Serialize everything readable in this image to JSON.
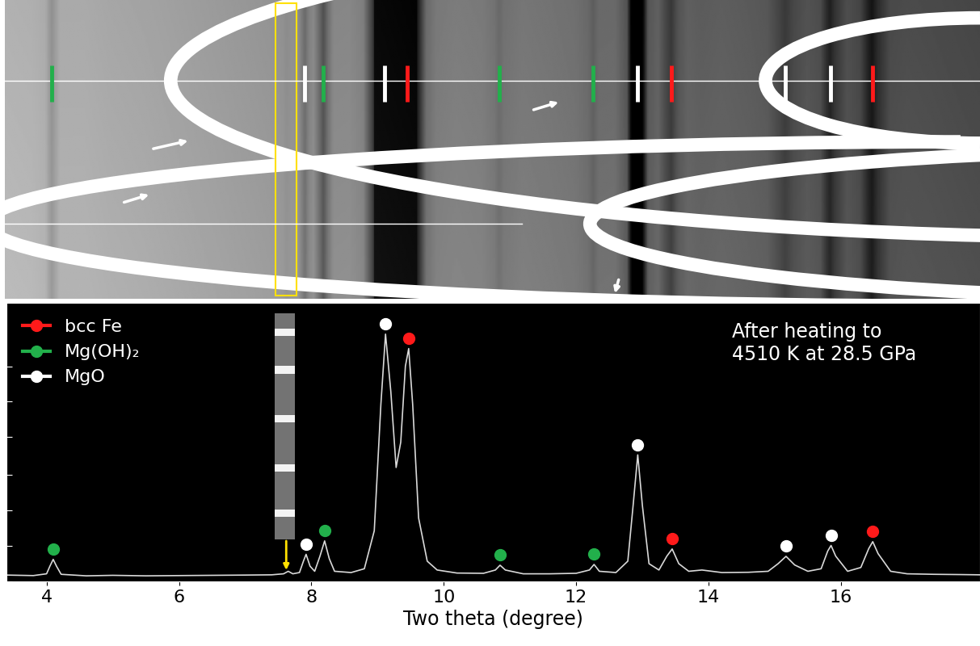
{
  "chart_data": {
    "type": "line",
    "xlabel": "Two theta (degree)",
    "annotation": "After heating to\n4510 K at 28.5 GPa",
    "xlim": [
      3.4,
      18.1
    ],
    "ylim": [
      0,
      110
    ],
    "xticks": [
      4,
      6,
      8,
      10,
      12,
      14,
      16
    ],
    "yticks": [
      0,
      14,
      28,
      42,
      57,
      71,
      85
    ],
    "tick_labels": "x",
    "legend": "upper left",
    "color": "#d9d9d9",
    "x": [
      3.4,
      3.8,
      4.0,
      4.05,
      4.1,
      4.15,
      4.22,
      4.6,
      5.0,
      5.5,
      6.0,
      6.5,
      7.0,
      7.4,
      7.58,
      7.65,
      7.72,
      7.82,
      7.88,
      7.92,
      7.98,
      8.05,
      8.13,
      8.2,
      8.27,
      8.35,
      8.6,
      8.8,
      8.95,
      9.05,
      9.12,
      9.2,
      9.28,
      9.35,
      9.42,
      9.47,
      9.53,
      9.62,
      9.75,
      9.9,
      10.2,
      10.6,
      10.78,
      10.85,
      10.93,
      11.2,
      11.6,
      12.0,
      12.2,
      12.27,
      12.35,
      12.6,
      12.78,
      12.86,
      12.93,
      13.0,
      13.1,
      13.25,
      13.37,
      13.45,
      13.55,
      13.7,
      13.9,
      14.2,
      14.6,
      14.9,
      15.05,
      15.17,
      15.3,
      15.5,
      15.7,
      15.8,
      15.85,
      15.92,
      16.1,
      16.3,
      16.42,
      16.48,
      16.56,
      16.75,
      17.0,
      17.4,
      17.8,
      18.1
    ],
    "values": [
      2.5,
      2.3,
      3,
      6,
      8.7,
      6,
      2.8,
      2.2,
      2.4,
      2.2,
      2.3,
      2.4,
      2.5,
      2.6,
      3,
      4,
      3,
      3.5,
      8,
      10.7,
      6,
      4,
      10,
      16,
      9,
      4,
      3.5,
      5,
      20,
      70,
      97.7,
      75,
      45,
      55,
      85,
      92,
      70,
      25,
      8,
      4.5,
      3.3,
      3.2,
      4.5,
      6.4,
      4.5,
      3,
      3,
      3.2,
      4.5,
      6.7,
      4,
      3.5,
      8,
      30,
      50,
      30,
      7,
      4.5,
      10,
      12.8,
      7,
      4,
      4.5,
      3.5,
      3.6,
      4,
      7,
      9.9,
      6.5,
      4,
      5,
      12,
      14.2,
      10,
      4,
      5.5,
      13,
      15.7,
      11,
      4,
      3,
      2.8,
      2.7,
      2.6
    ],
    "series": [
      {
        "name": "bcc Fe",
        "color": "#ff1a1a",
        "marker": "circle",
        "x": [
          9.47,
          13.45,
          16.48
        ],
        "values": [
          92,
          12.8,
          15.7
        ]
      },
      {
        "name": "Mg(OH)₂",
        "color": "#22b04b",
        "marker": "circle",
        "x": [
          4.1,
          8.2,
          10.85,
          12.27
        ],
        "values": [
          8.7,
          16,
          6.4,
          6.7
        ]
      },
      {
        "name": "MgO",
        "color": "#ffffff",
        "marker": "circle",
        "x": [
          7.92,
          9.12,
          12.93,
          15.17,
          15.85
        ],
        "values": [
          10.7,
          97.7,
          50,
          9.9,
          14.2
        ]
      }
    ],
    "highlight": {
      "x": 7.62,
      "range": [
        7.48,
        7.79
      ]
    }
  }
}
